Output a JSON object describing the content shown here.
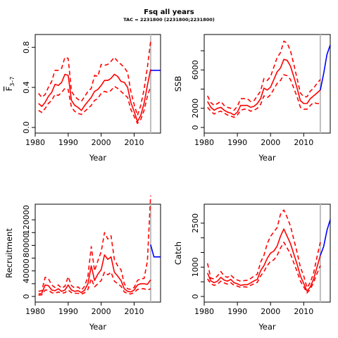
{
  "figure": {
    "title": "Fsq all years",
    "subtitle": "TAC = 2231800 (2231800;2231800)"
  },
  "colors": {
    "estimate": "#ff0000",
    "projection": "#0000ff",
    "vline": "#bebebe",
    "axis": "#000000"
  },
  "chart_data": [
    {
      "type": "line",
      "ylabel": "F̄3–7",
      "ylabel_main": "F",
      "ylabel_sub": "3–7",
      "xlabel": "Year",
      "xlim": [
        1980,
        2018
      ],
      "ylim": [
        0,
        0.9
      ],
      "xticks": [
        1980,
        1990,
        2000,
        2010
      ],
      "yticks": [
        0,
        0.4,
        0.8
      ],
      "ytick_labels": [
        "0.0",
        "0.4",
        "0.8"
      ],
      "vline_x": 2015,
      "x": [
        1981,
        1982,
        1983,
        1984,
        1985,
        1986,
        1987,
        1988,
        1989,
        1990,
        1991,
        1992,
        1993,
        1994,
        1995,
        1996,
        1997,
        1998,
        1999,
        2000,
        2001,
        2002,
        2003,
        2004,
        2005,
        2006,
        2007,
        2008,
        2009,
        2010,
        2011,
        2012,
        2013,
        2014,
        2015
      ],
      "series": [
        {
          "role": "estimate",
          "values": [
            0.24,
            0.21,
            0.25,
            0.31,
            0.35,
            0.43,
            0.42,
            0.45,
            0.53,
            0.52,
            0.27,
            0.22,
            0.2,
            0.17,
            0.22,
            0.26,
            0.3,
            0.36,
            0.38,
            0.42,
            0.47,
            0.47,
            0.49,
            0.53,
            0.51,
            0.46,
            0.45,
            0.4,
            0.25,
            0.16,
            0.06,
            0.12,
            0.24,
            0.42,
            0.58
          ]
        },
        {
          "role": "upper",
          "values": [
            0.34,
            0.3,
            0.33,
            0.4,
            0.46,
            0.57,
            0.57,
            0.59,
            0.7,
            0.69,
            0.36,
            0.31,
            0.28,
            0.26,
            0.31,
            0.36,
            0.39,
            0.52,
            0.51,
            0.63,
            0.62,
            0.63,
            0.66,
            0.7,
            0.66,
            0.63,
            0.6,
            0.55,
            0.36,
            0.23,
            0.12,
            0.22,
            0.38,
            0.6,
            0.86
          ]
        },
        {
          "role": "lower",
          "values": [
            0.17,
            0.15,
            0.19,
            0.24,
            0.27,
            0.33,
            0.32,
            0.35,
            0.39,
            0.38,
            0.2,
            0.16,
            0.14,
            0.13,
            0.16,
            0.19,
            0.22,
            0.27,
            0.29,
            0.34,
            0.36,
            0.35,
            0.37,
            0.41,
            0.39,
            0.36,
            0.33,
            0.3,
            0.18,
            0.11,
            0.04,
            0.08,
            0.17,
            0.31,
            0.41
          ]
        },
        {
          "role": "projection",
          "x": [
            2015,
            2016,
            2017,
            2018
          ],
          "values": [
            0.57,
            0.57,
            0.57,
            0.57
          ]
        }
      ]
    },
    {
      "type": "line",
      "ylabel": "SSB",
      "xlabel": "Year",
      "xlim": [
        1980,
        2018
      ],
      "ylim": [
        0,
        9400
      ],
      "xticks": [
        1980,
        1990,
        2000,
        2010
      ],
      "yticks": [
        0,
        2000,
        4000,
        6000,
        8000
      ],
      "ytick_labels": [
        "0",
        "2000",
        "",
        "6000",
        ""
      ],
      "vline_x": 2015,
      "x": [
        1981,
        1982,
        1983,
        1984,
        1985,
        1986,
        1987,
        1988,
        1989,
        1990,
        1991,
        1992,
        1993,
        1994,
        1995,
        1996,
        1997,
        1998,
        1999,
        2000,
        2001,
        2002,
        2003,
        2004,
        2005,
        2006,
        2007,
        2008,
        2009,
        2010,
        2011,
        2012,
        2013,
        2014,
        2015
      ],
      "series": [
        {
          "role": "estimate",
          "values": [
            2700,
            2100,
            1800,
            2000,
            2100,
            1800,
            1600,
            1500,
            1300,
            1600,
            2300,
            2300,
            2300,
            2100,
            2200,
            2500,
            3000,
            4100,
            3900,
            4200,
            5000,
            5800,
            6200,
            7100,
            7000,
            6400,
            5300,
            4100,
            2800,
            2500,
            2500,
            3000,
            3300,
            3600,
            3900
          ]
        },
        {
          "role": "upper",
          "values": [
            3300,
            2600,
            2300,
            2500,
            2700,
            2300,
            2100,
            2000,
            1800,
            2200,
            3000,
            3000,
            3000,
            2700,
            2800,
            3300,
            3800,
            5100,
            4900,
            5300,
            6300,
            7300,
            7800,
            9000,
            8800,
            8000,
            6600,
            5100,
            3600,
            3200,
            3200,
            3800,
            4100,
            4600,
            5000
          ]
        },
        {
          "role": "lower",
          "values": [
            2100,
            1700,
            1400,
            1600,
            1700,
            1500,
            1300,
            1200,
            1050,
            1300,
            1800,
            1900,
            1900,
            1700,
            1800,
            2000,
            2400,
            3300,
            3100,
            3400,
            4000,
            4600,
            4900,
            5500,
            5400,
            5000,
            4100,
            3200,
            2100,
            1900,
            1900,
            2300,
            2600,
            2500,
            2500
          ]
        },
        {
          "role": "projection",
          "x": [
            2015,
            2016,
            2017,
            2018
          ],
          "values": [
            3900,
            5600,
            7600,
            8600
          ]
        }
      ]
    },
    {
      "type": "line",
      "ylabel": "Recruitment",
      "xlabel": "Year",
      "xlim": [
        1980,
        2018
      ],
      "ylim": [
        0,
        140000
      ],
      "xticks": [
        1980,
        1990,
        2000,
        2010
      ],
      "yticks": [
        0,
        20000,
        40000,
        60000,
        80000,
        100000,
        120000
      ],
      "ytick_labels": [
        "0",
        "",
        "40000",
        "",
        "80000",
        "",
        "120000"
      ],
      "vline_x": 2015,
      "x": [
        1981,
        1982,
        1983,
        1984,
        1985,
        1986,
        1987,
        1988,
        1989,
        1990,
        1991,
        1992,
        1993,
        1994,
        1995,
        1996,
        1997,
        1998,
        1999,
        2000,
        2001,
        2002,
        2003,
        2004,
        2005,
        2006,
        2007,
        2008,
        2009,
        2010,
        2011,
        2012,
        2013,
        2014,
        2015
      ],
      "series": [
        {
          "role": "estimate",
          "values": [
            4000,
            5000,
            18000,
            17000,
            10000,
            9000,
            12000,
            8000,
            10000,
            18000,
            10000,
            8000,
            9000,
            6000,
            10000,
            20000,
            48000,
            25000,
            35000,
            42000,
            65000,
            58000,
            62000,
            38000,
            32000,
            25000,
            12000,
            8000,
            7000,
            10000,
            18000,
            20000,
            20000,
            19000,
            26000
          ]
        },
        {
          "role": "upper",
          "values": [
            8000,
            9000,
            30000,
            28000,
            18000,
            14000,
            18000,
            13000,
            16000,
            31000,
            17000,
            13000,
            15000,
            10000,
            16000,
            32000,
            78000,
            40000,
            56000,
            70000,
            100000,
            90000,
            95000,
            58000,
            48000,
            42000,
            20000,
            12000,
            11000,
            14000,
            25000,
            28000,
            28000,
            55000,
            158000
          ]
        },
        {
          "role": "lower",
          "values": [
            2000,
            2500,
            10000,
            10000,
            6000,
            5000,
            7000,
            5000,
            6000,
            10000,
            6000,
            5000,
            5000,
            3500,
            6000,
            11000,
            28000,
            15000,
            20000,
            25000,
            38000,
            34000,
            38000,
            24000,
            20000,
            16000,
            7000,
            4500,
            4000,
            6000,
            11000,
            12000,
            12000,
            10000,
            12000
          ]
        },
        {
          "role": "projection",
          "x": [
            2015,
            2016,
            2017,
            2018
          ],
          "values": [
            81000,
            62000,
            62000,
            62000
          ]
        }
      ]
    },
    {
      "type": "line",
      "ylabel": "Catch",
      "xlabel": "Year",
      "xlim": [
        1980,
        2018
      ],
      "ylim": [
        0,
        3050
      ],
      "xticks": [
        1980,
        1990,
        2000,
        2010
      ],
      "yticks": [
        0,
        500,
        1000,
        1500,
        2000,
        2500
      ],
      "ytick_labels": [
        "0",
        "",
        "1000",
        "",
        "",
        "2500"
      ],
      "vline_x": 2015,
      "x": [
        1981,
        1982,
        1983,
        1984,
        1985,
        1986,
        1987,
        1988,
        1989,
        1990,
        1991,
        1992,
        1993,
        1994,
        1995,
        1996,
        1997,
        1998,
        1999,
        2000,
        2001,
        2002,
        2003,
        2004,
        2005,
        2006,
        2007,
        2008,
        2009,
        2010,
        2011,
        2012,
        2013,
        2014,
        2015
      ],
      "series": [
        {
          "role": "estimate",
          "values": [
            800,
            530,
            470,
            520,
            650,
            560,
            520,
            580,
            470,
            430,
            380,
            400,
            400,
            460,
            530,
            580,
            880,
            1050,
            1300,
            1480,
            1550,
            1720,
            2050,
            2300,
            2050,
            1800,
            1450,
            1100,
            700,
            450,
            180,
            330,
            600,
            1000,
            1400
          ]
        },
        {
          "role": "upper",
          "values": [
            1130,
            620,
            600,
            700,
            850,
            700,
            650,
            730,
            620,
            560,
            520,
            540,
            550,
            610,
            700,
            760,
            1170,
            1400,
            1800,
            2050,
            2200,
            2350,
            2800,
            2950,
            2700,
            2400,
            1950,
            1500,
            1000,
            700,
            300,
            480,
            800,
            1350,
            1850
          ]
        },
        {
          "role": "lower",
          "values": [
            600,
            430,
            380,
            420,
            520,
            460,
            420,
            470,
            380,
            350,
            310,
            330,
            320,
            380,
            430,
            480,
            700,
            850,
            1050,
            1200,
            1250,
            1400,
            1650,
            1850,
            1650,
            1450,
            1150,
            850,
            520,
            330,
            120,
            250,
            480,
            780,
            1050
          ]
        },
        {
          "role": "projection",
          "x": [
            2015,
            2016,
            2017,
            2018
          ],
          "values": [
            1400,
            1700,
            2250,
            2620
          ]
        }
      ]
    }
  ]
}
